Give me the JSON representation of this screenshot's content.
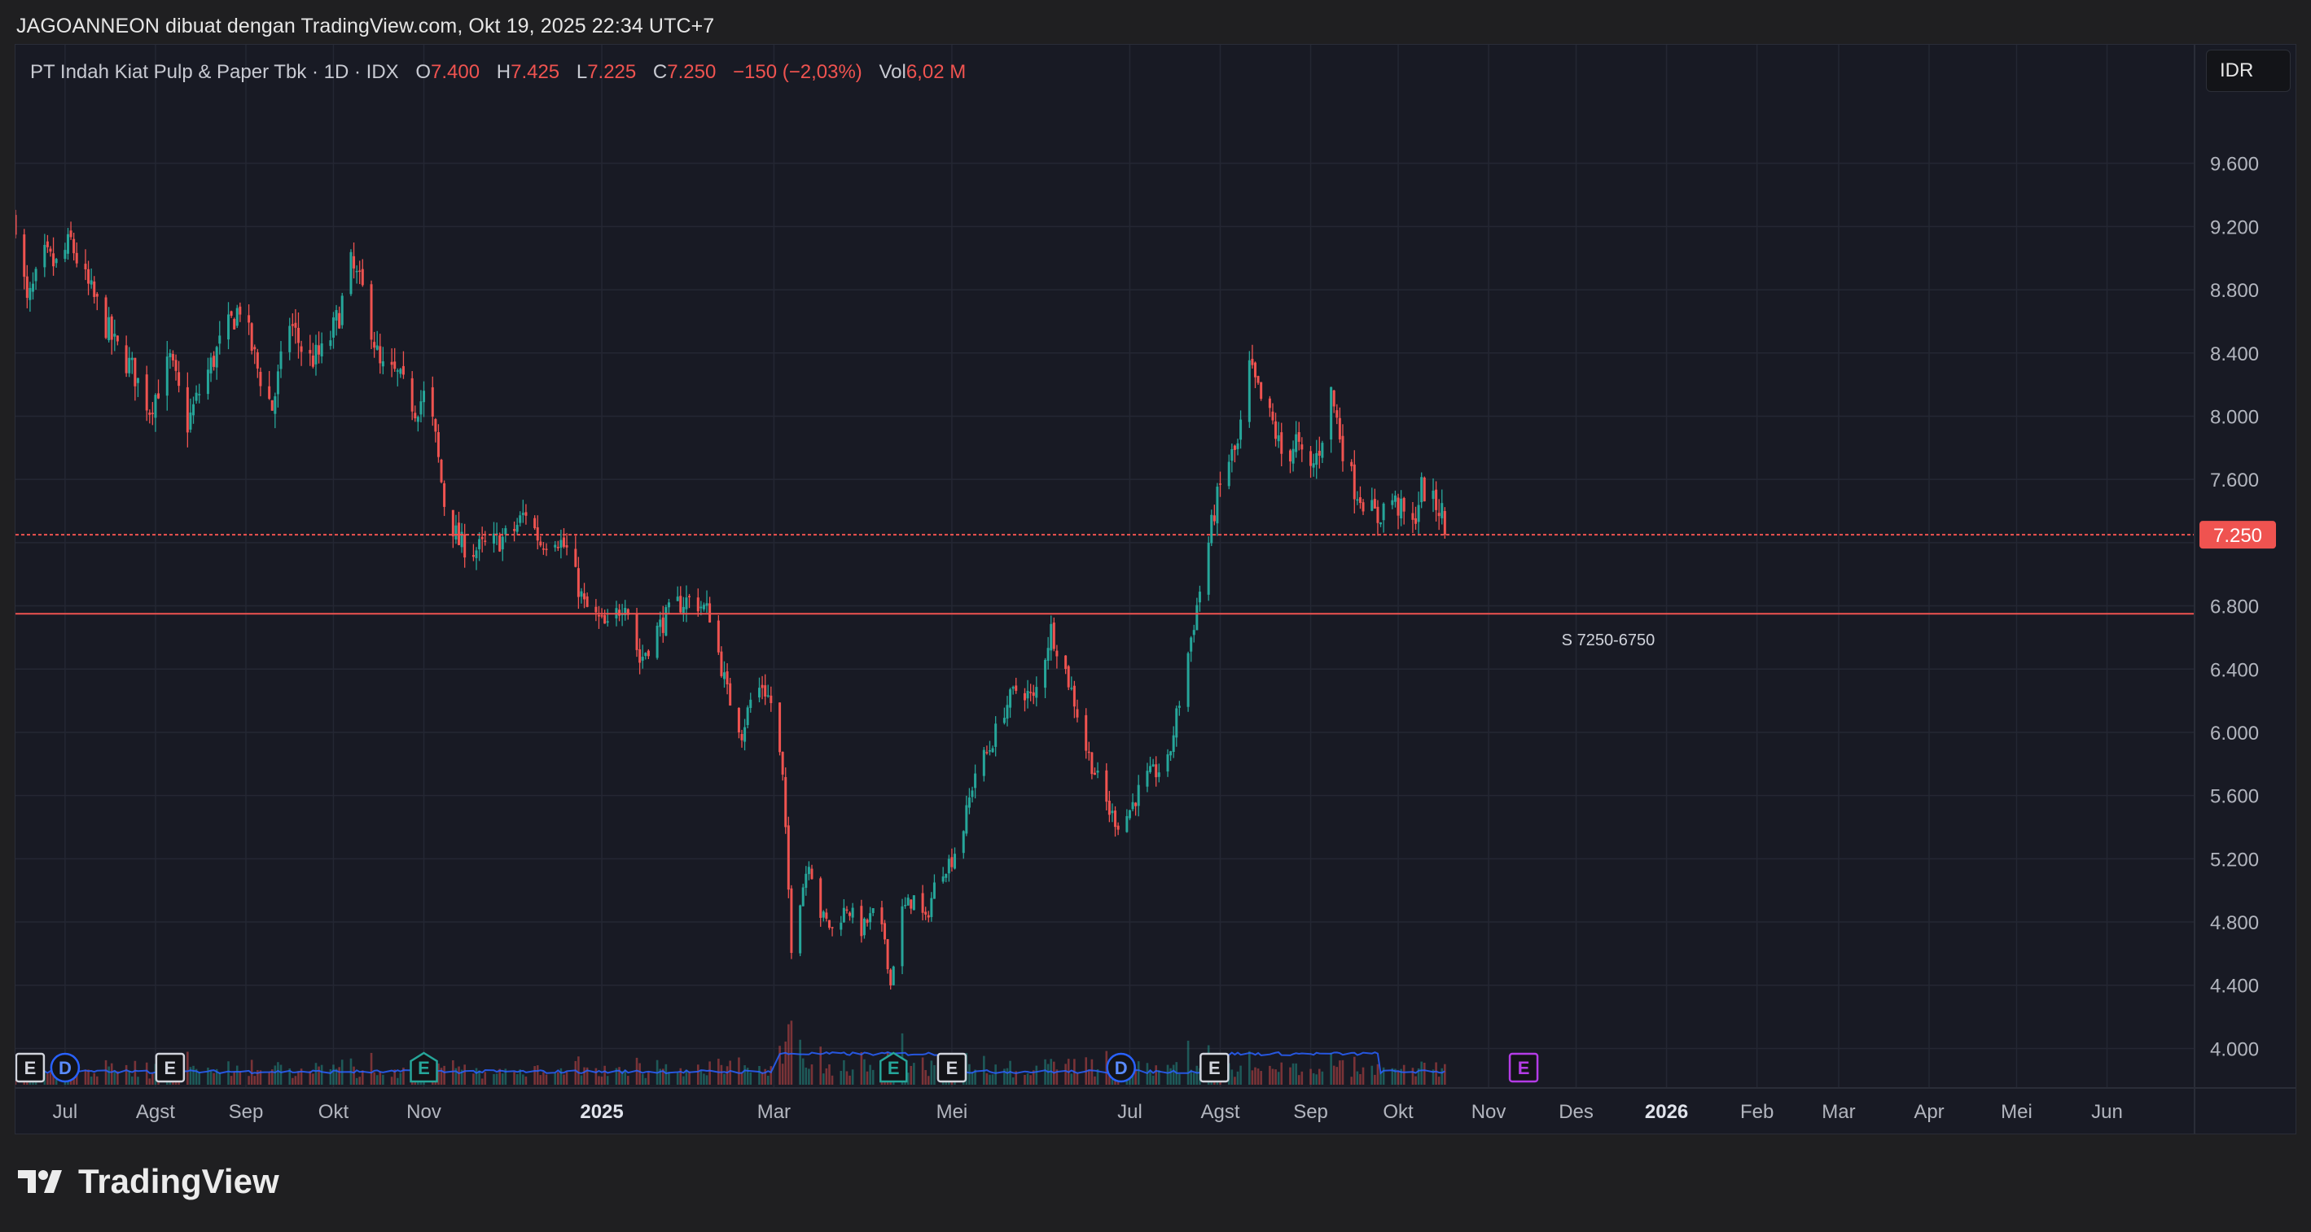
{
  "header": {
    "attribution": "JAGOANNEON dibuat dengan TradingView.com, Okt 19, 2025 22:34 UTC+7"
  },
  "legend": {
    "symbol": "PT Indah Kiat Pulp & Paper Tbk · 1D · IDX",
    "open_label": "O",
    "open": "7.400",
    "high_label": "H",
    "high": "7.425",
    "low_label": "L",
    "low": "7.225",
    "close_label": "C",
    "close": "7.250",
    "change": "−150 (−2,03%)",
    "vol_label": "Vol",
    "vol": "6,02 M"
  },
  "currency_button": "IDR",
  "footer": {
    "brand": "TradingView",
    "logo_icon": "tradingview-logo-icon"
  },
  "colors": {
    "up": "#26a69a",
    "down": "#ef5350",
    "grid": "#242733",
    "background": "#181a24",
    "volume_ma": "#2962ff",
    "earnings_future": "#b43ce6"
  },
  "chart_data": {
    "type": "candlestick",
    "symbol": "PT Indah Kiat Pulp & Paper Tbk",
    "interval": "1D",
    "exchange": "IDX",
    "currency": "IDR",
    "last_close": 7250,
    "last_close_label": "7.250",
    "price_range": [
      3750,
      10350
    ],
    "price_ticks": [
      {
        "value": 4000,
        "label": "4.000"
      },
      {
        "value": 4400,
        "label": "4.400"
      },
      {
        "value": 4800,
        "label": "4.800"
      },
      {
        "value": 5200,
        "label": "5.200"
      },
      {
        "value": 5600,
        "label": "5.600"
      },
      {
        "value": 6000,
        "label": "6.000"
      },
      {
        "value": 6400,
        "label": "6.400"
      },
      {
        "value": 6800,
        "label": "6.800"
      },
      {
        "value": 7200,
        "label": "7.200"
      },
      {
        "value": 7600,
        "label": "7.600"
      },
      {
        "value": 8000,
        "label": "8.000"
      },
      {
        "value": 8400,
        "label": "8.400"
      },
      {
        "value": 8800,
        "label": "8.800"
      },
      {
        "value": 9200,
        "label": "9.200"
      },
      {
        "value": 9600,
        "label": "9.600"
      }
    ],
    "time_range": [
      "2024-06-14",
      "2026-07-01"
    ],
    "time_ticks": [
      {
        "date": "2024-07-01",
        "label": "Jul",
        "bold": false
      },
      {
        "date": "2024-08-01",
        "label": "Agst",
        "bold": false
      },
      {
        "date": "2024-09-01",
        "label": "Sep",
        "bold": false
      },
      {
        "date": "2024-10-01",
        "label": "Okt",
        "bold": false
      },
      {
        "date": "2024-11-01",
        "label": "Nov",
        "bold": false
      },
      {
        "date": "2025-01-01",
        "label": "2025",
        "bold": true
      },
      {
        "date": "2025-03-01",
        "label": "Mar",
        "bold": false
      },
      {
        "date": "2025-05-01",
        "label": "Mei",
        "bold": false
      },
      {
        "date": "2025-07-01",
        "label": "Jul",
        "bold": false
      },
      {
        "date": "2025-08-01",
        "label": "Agst",
        "bold": false
      },
      {
        "date": "2025-09-01",
        "label": "Sep",
        "bold": false
      },
      {
        "date": "2025-10-01",
        "label": "Okt",
        "bold": false
      },
      {
        "date": "2025-11-01",
        "label": "Nov",
        "bold": false
      },
      {
        "date": "2025-12-01",
        "label": "Des",
        "bold": false
      },
      {
        "date": "2026-01-01",
        "label": "2026",
        "bold": true
      },
      {
        "date": "2026-02-01",
        "label": "Feb",
        "bold": false
      },
      {
        "date": "2026-03-01",
        "label": "Mar",
        "bold": false
      },
      {
        "date": "2026-04-01",
        "label": "Apr",
        "bold": false
      },
      {
        "date": "2026-05-01",
        "label": "Mei",
        "bold": false
      },
      {
        "date": "2026-06-01",
        "label": "Jun",
        "bold": false
      }
    ],
    "price_path": [
      [
        "2024-06-14",
        9250
      ],
      [
        "2024-06-18",
        8700
      ],
      [
        "2024-06-24",
        9000
      ],
      [
        "2024-06-28",
        8950
      ],
      [
        "2024-07-03",
        9100
      ],
      [
        "2024-07-08",
        8850
      ],
      [
        "2024-07-12",
        8700
      ],
      [
        "2024-07-18",
        8450
      ],
      [
        "2024-07-24",
        8300
      ],
      [
        "2024-07-30",
        8050
      ],
      [
        "2024-08-06",
        8350
      ],
      [
        "2024-08-12",
        7950
      ],
      [
        "2024-08-17",
        8200
      ],
      [
        "2024-08-23",
        8450
      ],
      [
        "2024-08-30",
        8700
      ],
      [
        "2024-09-05",
        8300
      ],
      [
        "2024-09-10",
        8050
      ],
      [
        "2024-09-16",
        8600
      ],
      [
        "2024-09-22",
        8350
      ],
      [
        "2024-09-28",
        8400
      ],
      [
        "2024-10-03",
        8650
      ],
      [
        "2024-10-07",
        8950
      ],
      [
        "2024-10-12",
        8750
      ],
      [
        "2024-10-17",
        8300
      ],
      [
        "2024-10-23",
        8250
      ],
      [
        "2024-10-29",
        8050
      ],
      [
        "2024-11-02",
        8150
      ],
      [
        "2024-11-05",
        7850
      ],
      [
        "2024-11-08",
        7450
      ],
      [
        "2024-11-13",
        7200
      ],
      [
        "2024-11-18",
        7150
      ],
      [
        "2024-11-25",
        7200
      ],
      [
        "2024-12-01",
        7250
      ],
      [
        "2024-12-06",
        7400
      ],
      [
        "2024-12-11",
        7200
      ],
      [
        "2024-12-16",
        7250
      ],
      [
        "2024-12-20",
        7150
      ],
      [
        "2024-12-26",
        6800
      ],
      [
        "2025-01-03",
        6650
      ],
      [
        "2025-01-09",
        6850
      ],
      [
        "2025-01-14",
        6450
      ],
      [
        "2025-01-20",
        6650
      ],
      [
        "2025-01-26",
        6800
      ],
      [
        "2025-02-01",
        6850
      ],
      [
        "2025-02-07",
        6750
      ],
      [
        "2025-02-13",
        6250
      ],
      [
        "2025-02-18",
        6000
      ],
      [
        "2025-02-21",
        6200
      ],
      [
        "2025-02-25",
        6300
      ],
      [
        "2025-03-01",
        6150
      ],
      [
        "2025-03-04",
        5700
      ],
      [
        "2025-03-07",
        4650
      ],
      [
        "2025-03-10",
        4950
      ],
      [
        "2025-03-13",
        5200
      ],
      [
        "2025-03-17",
        4850
      ],
      [
        "2025-03-21",
        4750
      ],
      [
        "2025-03-26",
        4900
      ],
      [
        "2025-03-31",
        4750
      ],
      [
        "2025-04-04",
        4850
      ],
      [
        "2025-04-08",
        4700
      ],
      [
        "2025-04-10",
        4400
      ],
      [
        "2025-04-13",
        4850
      ],
      [
        "2025-04-18",
        4950
      ],
      [
        "2025-04-22",
        4800
      ],
      [
        "2025-04-26",
        5100
      ],
      [
        "2025-05-01",
        5200
      ],
      [
        "2025-05-05",
        5400
      ],
      [
        "2025-05-09",
        5750
      ],
      [
        "2025-05-14",
        5900
      ],
      [
        "2025-05-19",
        6150
      ],
      [
        "2025-05-24",
        6300
      ],
      [
        "2025-05-29",
        6200
      ],
      [
        "2025-06-04",
        6650
      ],
      [
        "2025-06-08",
        6450
      ],
      [
        "2025-06-12",
        6200
      ],
      [
        "2025-06-16",
        5900
      ],
      [
        "2025-06-20",
        5700
      ],
      [
        "2025-06-24",
        5500
      ],
      [
        "2025-06-28",
        5400
      ],
      [
        "2025-07-02",
        5550
      ],
      [
        "2025-07-06",
        5700
      ],
      [
        "2025-07-10",
        5750
      ],
      [
        "2025-07-14",
        5800
      ],
      [
        "2025-07-18",
        6200
      ],
      [
        "2025-07-22",
        6600
      ],
      [
        "2025-07-26",
        7000
      ],
      [
        "2025-07-30",
        7400
      ],
      [
        "2025-08-03",
        7700
      ],
      [
        "2025-08-07",
        7800
      ],
      [
        "2025-08-11",
        8300
      ],
      [
        "2025-08-15",
        8100
      ],
      [
        "2025-08-19",
        7950
      ],
      [
        "2025-08-23",
        7700
      ],
      [
        "2025-08-27",
        7850
      ],
      [
        "2025-08-31",
        7600
      ],
      [
        "2025-09-04",
        7800
      ],
      [
        "2025-09-08",
        8150
      ],
      [
        "2025-09-12",
        7800
      ],
      [
        "2025-09-16",
        7550
      ],
      [
        "2025-09-20",
        7450
      ],
      [
        "2025-09-24",
        7350
      ],
      [
        "2025-09-28",
        7500
      ],
      [
        "2025-10-02",
        7400
      ],
      [
        "2025-10-06",
        7300
      ],
      [
        "2025-10-09",
        7550
      ],
      [
        "2025-10-13",
        7450
      ],
      [
        "2025-10-16",
        7400
      ],
      [
        "2025-10-17",
        7250
      ]
    ],
    "last_bar": {
      "open": 7400,
      "high": 7425,
      "low": 7225,
      "close": 7250
    },
    "lines": [
      {
        "name": "S 7250-6750",
        "price": 7250
      },
      {
        "name": "S 7250-6750",
        "price": 6750
      }
    ],
    "annotation": {
      "text": "S 7250-6750",
      "date": "2025-12-12",
      "price": 6550
    },
    "event_markers": [
      {
        "date": "2024-06-19",
        "letter": "E",
        "kind": "earnings"
      },
      {
        "date": "2024-07-01",
        "letter": "D",
        "kind": "dividend"
      },
      {
        "date": "2024-08-06",
        "letter": "E",
        "kind": "earnings"
      },
      {
        "date": "2024-11-01",
        "letter": "E",
        "kind": "earnings"
      },
      {
        "date": "2025-04-11",
        "letter": "E",
        "kind": "earnings"
      },
      {
        "date": "2025-05-01",
        "letter": "E",
        "kind": "earnings"
      },
      {
        "date": "2025-06-28",
        "letter": "D",
        "kind": "dividend"
      },
      {
        "date": "2025-07-30",
        "letter": "E",
        "kind": "earnings"
      },
      {
        "date": "2025-11-13",
        "letter": "E",
        "kind": "earnings-future"
      }
    ]
  }
}
